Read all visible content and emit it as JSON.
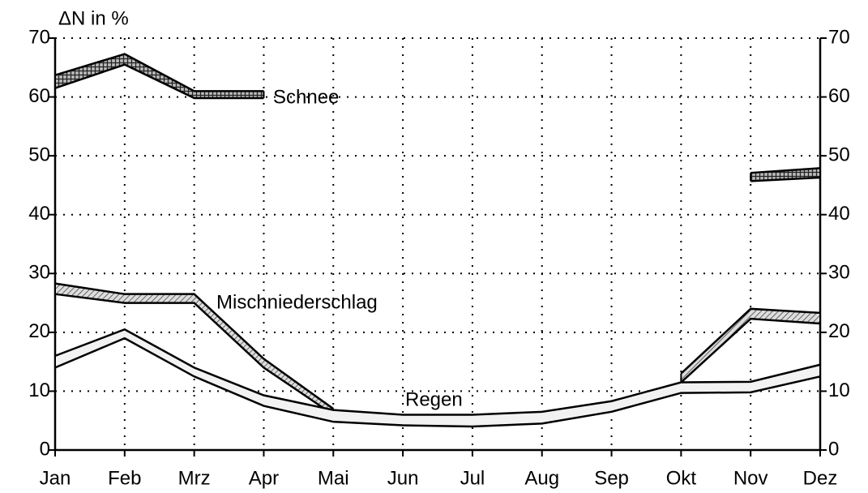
{
  "chart_data": {
    "type": "band",
    "y_label": "ΔN in %",
    "categories": [
      "Jan",
      "Feb",
      "Mrz",
      "Apr",
      "Mai",
      "Jun",
      "Jul",
      "Aug",
      "Sep",
      "Okt",
      "Nov",
      "Dez"
    ],
    "series": [
      {
        "name": "Schnee",
        "color": "#555555",
        "values": [
          63.7,
          67.3,
          61,
          61,
          null,
          null,
          null,
          null,
          null,
          null,
          47.1,
          47.9
        ],
        "lower": [
          61.5,
          65.5,
          59.8,
          59.8,
          null,
          null,
          null,
          null,
          null,
          null,
          45.7,
          46.3
        ]
      },
      {
        "name": "Mischniederschlag",
        "color": "#888888",
        "values": [
          28.3,
          26.5,
          26.5,
          15.5,
          7,
          null,
          null,
          null,
          null,
          13,
          24,
          23.3
        ],
        "lower": [
          26.5,
          25,
          25,
          14,
          6,
          null,
          null,
          null,
          null,
          11.5,
          22.3,
          21.5
        ]
      },
      {
        "name": "Regen",
        "color": "#f2f2f2",
        "values": [
          16,
          20.5,
          14,
          9.3,
          6.8,
          6,
          6,
          6.5,
          8.3,
          11.5,
          11.6,
          14.5
        ],
        "lower": [
          14,
          19,
          12.5,
          7.5,
          4.8,
          4.2,
          4,
          4.5,
          6.5,
          9.7,
          9.8,
          12.5
        ]
      }
    ],
    "ylim": [
      0,
      70
    ],
    "yticks": [
      0,
      10,
      20,
      30,
      40,
      50,
      60,
      70
    ],
    "y2lim": [
      0,
      70
    ],
    "y2ticks": [
      0,
      10,
      20,
      30,
      40,
      50,
      60,
      70
    ],
    "grid": true
  }
}
